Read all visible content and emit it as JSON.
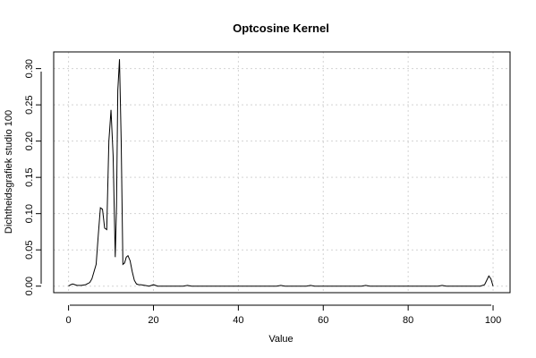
{
  "chart_data": {
    "type": "line",
    "title": "Optcosine Kernel",
    "xlabel": "Value",
    "ylabel": "Dichtheidsgrafiek studio 100",
    "xlim": [
      -3.5,
      104
    ],
    "ylim": [
      -0.009,
      0.323
    ],
    "grid": true,
    "x_ticks": [
      0,
      20,
      40,
      60,
      80,
      100
    ],
    "x_tick_labels": [
      "0",
      "20",
      "40",
      "60",
      "80",
      "100"
    ],
    "y_ticks": [
      0.0,
      0.05,
      0.1,
      0.15,
      0.2,
      0.25,
      0.3
    ],
    "y_tick_labels": [
      "0.00",
      "0.05",
      "0.10",
      "0.15",
      "0.20",
      "0.25",
      "0.30"
    ],
    "series": [
      {
        "x": [
          0,
          0.5,
          1,
          1.5,
          2,
          3,
          4,
          5,
          5.5,
          6,
          6.5,
          7,
          7.5,
          8,
          8.5,
          9,
          9.5,
          10,
          10.5,
          11,
          11.3,
          11.6,
          12,
          12.4,
          12.8,
          13.2,
          13.6,
          14,
          14.5,
          15,
          15.5,
          16,
          16.5,
          17,
          18,
          19,
          20,
          21,
          22,
          25,
          27,
          28,
          29,
          30,
          35,
          40,
          45,
          49,
          50,
          51,
          55,
          56,
          57,
          58,
          60,
          65,
          69,
          70,
          71,
          75,
          80,
          85,
          87,
          88,
          89,
          92,
          95,
          97,
          98,
          98.5,
          99,
          99.5,
          100
        ],
        "y": [
          0.0,
          0.002,
          0.003,
          0.002,
          0.001,
          0.001,
          0.002,
          0.005,
          0.01,
          0.02,
          0.03,
          0.07,
          0.108,
          0.106,
          0.08,
          0.078,
          0.2,
          0.243,
          0.18,
          0.04,
          0.11,
          0.27,
          0.313,
          0.2,
          0.03,
          0.032,
          0.04,
          0.042,
          0.035,
          0.02,
          0.008,
          0.003,
          0.002,
          0.002,
          0.001,
          0.0,
          0.002,
          0.0,
          0.0,
          0.0,
          0.0,
          0.001,
          0.0,
          0.0,
          0.0,
          0.0,
          0.0,
          0.0,
          0.001,
          0.0,
          0.0,
          0.0,
          0.001,
          0.0,
          0.0,
          0.0,
          0.0,
          0.001,
          0.0,
          0.0,
          0.0,
          0.0,
          0.0,
          0.001,
          0.0,
          0.0,
          0.0,
          0.0,
          0.002,
          0.008,
          0.014,
          0.01,
          0.0
        ]
      }
    ]
  }
}
